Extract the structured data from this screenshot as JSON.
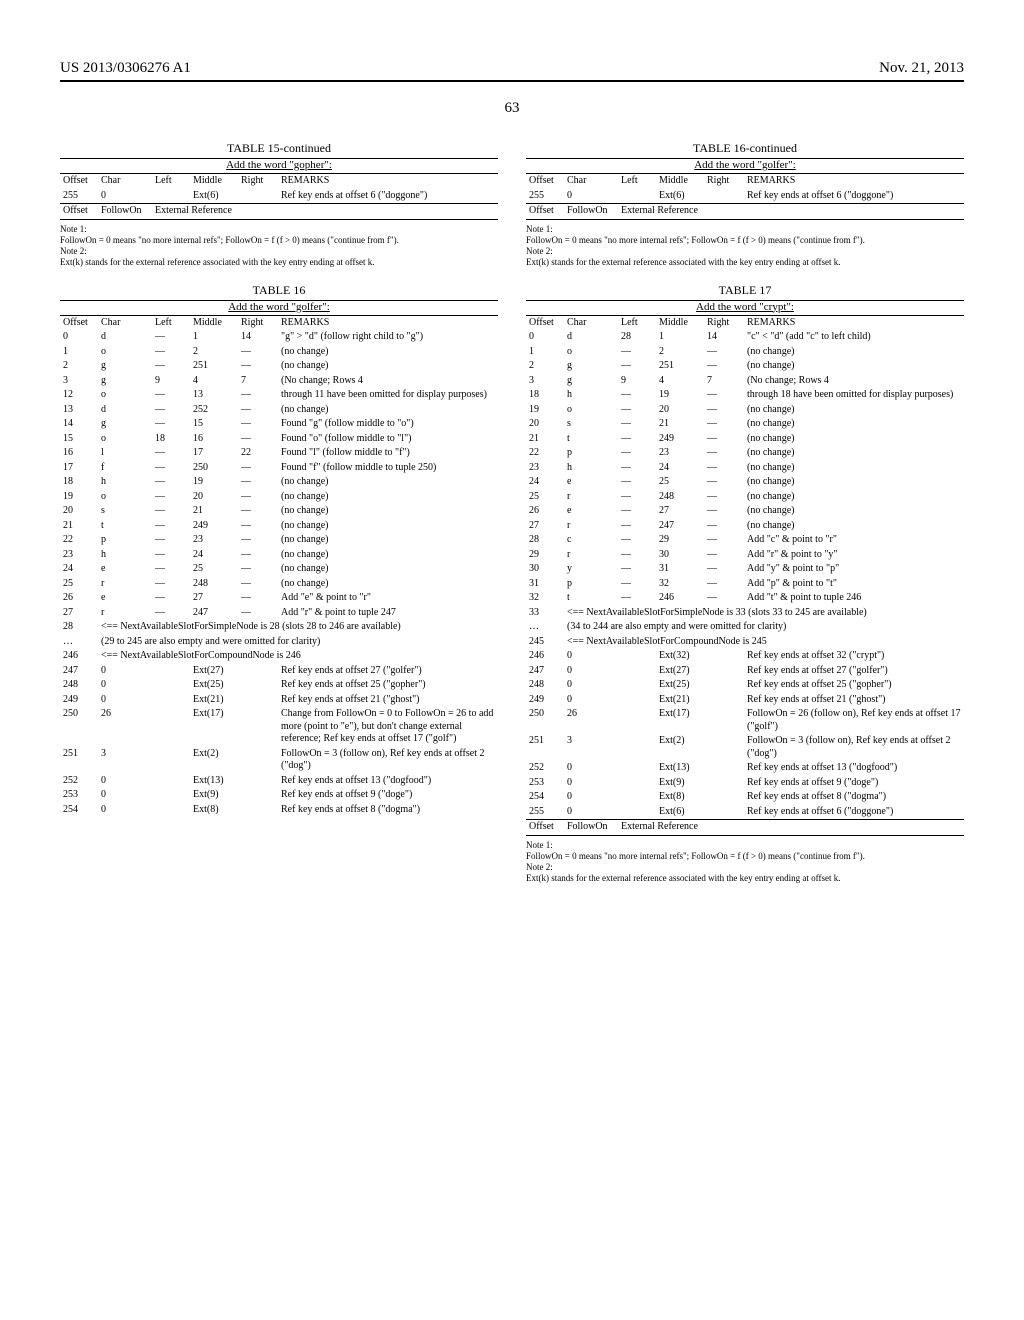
{
  "header": {
    "left": "US 2013/0306276 A1",
    "right": "Nov. 21, 2013"
  },
  "page_number": "63",
  "tables": {
    "t15c": {
      "title": "TABLE 15-continued",
      "subtitle": "Add the word \"gopher\":",
      "columns": [
        "Offset",
        "Char",
        "Left",
        "Middle",
        "Right",
        "REMARKS"
      ],
      "rows": [
        {
          "offset": "255",
          "char": "0",
          "left": "",
          "middle": "Ext(6)",
          "right": "",
          "remarks": "Ref key ends at offset 6 (\"doggone\")"
        }
      ],
      "footer_row": {
        "offset": "Offset",
        "char": "FollowOn",
        "middle": "External Reference"
      }
    },
    "t16": {
      "title": "TABLE 16",
      "subtitle": "Add the word \"golfer\":",
      "columns": [
        "Offset",
        "Char",
        "Left",
        "Middle",
        "Right",
        "REMARKS"
      ],
      "rows": [
        {
          "offset": "0",
          "char": "d",
          "left": "—",
          "middle": "1",
          "right": "14",
          "remarks": "\"g\" > \"d\" (follow right child to \"g\")"
        },
        {
          "offset": "1",
          "char": "o",
          "left": "—",
          "middle": "2",
          "right": "—",
          "remarks": "(no change)"
        },
        {
          "offset": "2",
          "char": "g",
          "left": "—",
          "middle": "251",
          "right": "—",
          "remarks": "(no change)"
        },
        {
          "offset": "3",
          "char": "g",
          "left": "9",
          "middle": "4",
          "right": "7",
          "remarks": "(No change; Rows 4"
        },
        {
          "offset": "12",
          "char": "o",
          "left": "—",
          "middle": "13",
          "right": "—",
          "remarks": "through 11 have been omitted for display purposes)"
        },
        {
          "offset": "13",
          "char": "d",
          "left": "—",
          "middle": "252",
          "right": "—",
          "remarks": "(no change)"
        },
        {
          "offset": "14",
          "char": "g",
          "left": "—",
          "middle": "15",
          "right": "—",
          "remarks": "Found \"g\" (follow middle to \"o\")"
        },
        {
          "offset": "15",
          "char": "o",
          "left": "18",
          "middle": "16",
          "right": "—",
          "remarks": "Found \"o\" (follow middle to \"l\")"
        },
        {
          "offset": "16",
          "char": "l",
          "left": "—",
          "middle": "17",
          "right": "22",
          "remarks": "Found \"l\" (follow middle to \"f\")"
        },
        {
          "offset": "17",
          "char": "f",
          "left": "—",
          "middle": "250",
          "right": "—",
          "remarks": "Found \"f\" (follow middle to tuple 250)"
        },
        {
          "offset": "18",
          "char": "h",
          "left": "—",
          "middle": "19",
          "right": "—",
          "remarks": "(no change)"
        },
        {
          "offset": "19",
          "char": "o",
          "left": "—",
          "middle": "20",
          "right": "—",
          "remarks": "(no change)"
        },
        {
          "offset": "20",
          "char": "s",
          "left": "—",
          "middle": "21",
          "right": "—",
          "remarks": "(no change)"
        },
        {
          "offset": "21",
          "char": "t",
          "left": "—",
          "middle": "249",
          "right": "—",
          "remarks": "(no change)"
        },
        {
          "offset": "22",
          "char": "p",
          "left": "—",
          "middle": "23",
          "right": "—",
          "remarks": "(no change)"
        },
        {
          "offset": "23",
          "char": "h",
          "left": "—",
          "middle": "24",
          "right": "—",
          "remarks": "(no change)"
        },
        {
          "offset": "24",
          "char": "e",
          "left": "—",
          "middle": "25",
          "right": "—",
          "remarks": "(no change)"
        },
        {
          "offset": "25",
          "char": "r",
          "left": "—",
          "middle": "248",
          "right": "—",
          "remarks": "(no change)"
        },
        {
          "offset": "26",
          "char": "e",
          "left": "—",
          "middle": "27",
          "right": "—",
          "remarks": "Add \"e\" & point to \"r\""
        },
        {
          "offset": "27",
          "char": "r",
          "left": "—",
          "middle": "247",
          "right": "—",
          "remarks": "Add \"r\" & point to tuple 247"
        }
      ],
      "span_rows": [
        {
          "offset": "28",
          "text": "<== NextAvailableSlotForSimpleNode is 28 (slots 28 to 246 are available)"
        },
        {
          "offset": "…",
          "text": "(29 to 245 are also empty and were omitted for clarity)"
        },
        {
          "offset": "246",
          "text": "<== NextAvailableSlotForCompoundNode is 246"
        }
      ],
      "ext_rows": [
        {
          "offset": "247",
          "char": "0",
          "middle": "Ext(27)",
          "remarks": "Ref key ends at offset 27 (\"golfer\")"
        },
        {
          "offset": "248",
          "char": "0",
          "middle": "Ext(25)",
          "remarks": "Ref key ends at offset 25 (\"gopher\")"
        },
        {
          "offset": "249",
          "char": "0",
          "middle": "Ext(21)",
          "remarks": "Ref key ends at offset 21 (\"ghost\")"
        },
        {
          "offset": "250",
          "char": "26",
          "middle": "Ext(17)",
          "remarks": "Change from FollowOn = 0 to FollowOn = 26 to add more (point to \"e\"), but don't change external reference; Ref key ends at offset 17 (\"golf\")"
        },
        {
          "offset": "251",
          "char": "3",
          "middle": "Ext(2)",
          "remarks": "FollowOn = 3 (follow on), Ref key ends at offset 2 (\"dog\")"
        },
        {
          "offset": "252",
          "char": "0",
          "middle": "Ext(13)",
          "remarks": "Ref key ends at offset 13 (\"dogfood\")"
        },
        {
          "offset": "253",
          "char": "0",
          "middle": "Ext(9)",
          "remarks": "Ref key ends at offset 9 (\"doge\")"
        },
        {
          "offset": "254",
          "char": "0",
          "middle": "Ext(8)",
          "remarks": "Ref key ends at offset 8 (\"dogma\")"
        }
      ]
    },
    "t16c": {
      "title": "TABLE 16-continued",
      "subtitle": "Add the word \"golfer\":",
      "columns": [
        "Offset",
        "Char",
        "Left",
        "Middle",
        "Right",
        "REMARKS"
      ],
      "rows": [
        {
          "offset": "255",
          "char": "0",
          "left": "",
          "middle": "Ext(6)",
          "right": "",
          "remarks": "Ref key ends at offset 6 (\"doggone\")"
        }
      ],
      "footer_row": {
        "offset": "Offset",
        "char": "FollowOn",
        "middle": "External Reference"
      }
    },
    "t17": {
      "title": "TABLE 17",
      "subtitle": "Add the word \"crypt\":",
      "columns": [
        "Offset",
        "Char",
        "Left",
        "Middle",
        "Right",
        "REMARKS"
      ],
      "rows": [
        {
          "offset": "0",
          "char": "d",
          "left": "28",
          "middle": "1",
          "right": "14",
          "remarks": "\"c\" < \"d\" (add \"c\" to left child)"
        },
        {
          "offset": "1",
          "char": "o",
          "left": "—",
          "middle": "2",
          "right": "—",
          "remarks": "(no change)"
        },
        {
          "offset": "2",
          "char": "g",
          "left": "—",
          "middle": "251",
          "right": "—",
          "remarks": "(no change)"
        },
        {
          "offset": "3",
          "char": "g",
          "left": "9",
          "middle": "4",
          "right": "7",
          "remarks": "(No change; Rows 4"
        },
        {
          "offset": "18",
          "char": "h",
          "left": "—",
          "middle": "19",
          "right": "—",
          "remarks": "through 18 have been omitted for display purposes)"
        },
        {
          "offset": "19",
          "char": "o",
          "left": "—",
          "middle": "20",
          "right": "—",
          "remarks": "(no change)"
        },
        {
          "offset": "20",
          "char": "s",
          "left": "—",
          "middle": "21",
          "right": "—",
          "remarks": "(no change)"
        },
        {
          "offset": "21",
          "char": "t",
          "left": "—",
          "middle": "249",
          "right": "—",
          "remarks": "(no change)"
        },
        {
          "offset": "22",
          "char": "p",
          "left": "—",
          "middle": "23",
          "right": "—",
          "remarks": "(no change)"
        },
        {
          "offset": "23",
          "char": "h",
          "left": "—",
          "middle": "24",
          "right": "—",
          "remarks": "(no change)"
        },
        {
          "offset": "24",
          "char": "e",
          "left": "—",
          "middle": "25",
          "right": "—",
          "remarks": "(no change)"
        },
        {
          "offset": "25",
          "char": "r",
          "left": "—",
          "middle": "248",
          "right": "—",
          "remarks": "(no change)"
        },
        {
          "offset": "26",
          "char": "e",
          "left": "—",
          "middle": "27",
          "right": "—",
          "remarks": "(no change)"
        },
        {
          "offset": "27",
          "char": "r",
          "left": "—",
          "middle": "247",
          "right": "—",
          "remarks": "(no change)"
        },
        {
          "offset": "28",
          "char": "c",
          "left": "—",
          "middle": "29",
          "right": "—",
          "remarks": "Add \"c\" & point to \"r\""
        },
        {
          "offset": "29",
          "char": "r",
          "left": "—",
          "middle": "30",
          "right": "—",
          "remarks": "Add \"r\" & point to \"y\""
        },
        {
          "offset": "30",
          "char": "y",
          "left": "—",
          "middle": "31",
          "right": "—",
          "remarks": "Add \"y\" & point to \"p\""
        },
        {
          "offset": "31",
          "char": "p",
          "left": "—",
          "middle": "32",
          "right": "—",
          "remarks": "Add \"p\" & point to \"t\""
        },
        {
          "offset": "32",
          "char": "t",
          "left": "—",
          "middle": "246",
          "right": "—",
          "remarks": "Add \"t\" & point to tuple 246"
        }
      ],
      "span_rows": [
        {
          "offset": "33",
          "text": "<== NextAvailableSlotForSimpleNode is 33 (slots 33 to 245 are available)"
        },
        {
          "offset": "…",
          "text": "(34 to 244 are also empty and were omitted for clarity)"
        },
        {
          "offset": "245",
          "text": "<== NextAvailableSlotForCompoundNode is 245"
        }
      ],
      "ext_rows": [
        {
          "offset": "246",
          "char": "0",
          "middle": "Ext(32)",
          "remarks": "Ref key ends at offset 32 (\"crypt\")"
        },
        {
          "offset": "247",
          "char": "0",
          "middle": "Ext(27)",
          "remarks": "Ref key ends at offset 27 (\"golfer\")"
        },
        {
          "offset": "248",
          "char": "0",
          "middle": "Ext(25)",
          "remarks": "Ref key ends at offset 25 (\"gopher\")"
        },
        {
          "offset": "249",
          "char": "0",
          "middle": "Ext(21)",
          "remarks": "Ref key ends at offset 21 (\"ghost\")"
        },
        {
          "offset": "250",
          "char": "26",
          "middle": "Ext(17)",
          "remarks": "FollowOn = 26 (follow on), Ref key ends at offset 17 (\"golf\")"
        },
        {
          "offset": "251",
          "char": "3",
          "middle": "Ext(2)",
          "remarks": "FollowOn = 3 (follow on), Ref key ends at offset 2 (\"dog\")"
        },
        {
          "offset": "252",
          "char": "0",
          "middle": "Ext(13)",
          "remarks": "Ref key ends at offset 13 (\"dogfood\")"
        },
        {
          "offset": "253",
          "char": "0",
          "middle": "Ext(9)",
          "remarks": "Ref key ends at offset 9 (\"doge\")"
        },
        {
          "offset": "254",
          "char": "0",
          "middle": "Ext(8)",
          "remarks": "Ref key ends at offset 8 (\"dogma\")"
        },
        {
          "offset": "255",
          "char": "0",
          "middle": "Ext(6)",
          "remarks": "Ref key ends at offset 6 (\"doggone\")"
        }
      ],
      "footer_row": {
        "offset": "Offset",
        "char": "FollowOn",
        "middle": "External Reference"
      }
    }
  },
  "notes": {
    "note1_label": "Note 1:",
    "note1_text": "FollowOn = 0 means \"no more internal refs\"; FollowOn = f (f > 0) means (\"continue from f\").",
    "note2_label": "Note 2:",
    "note2_text": "Ext(k) stands for the external reference associated with the key entry ending at offset k."
  }
}
